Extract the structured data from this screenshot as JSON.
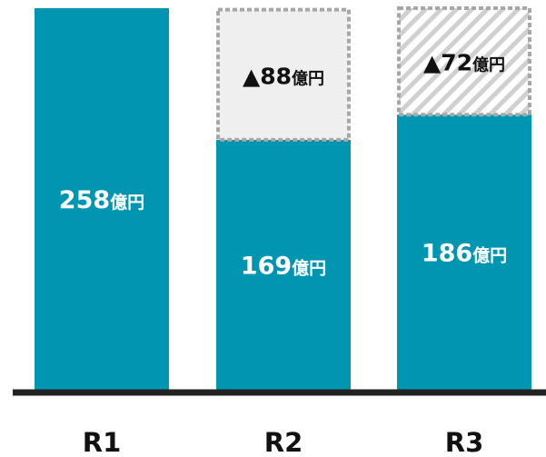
{
  "chart_data": {
    "type": "bar",
    "categories": [
      "R1",
      "R2",
      "R3"
    ],
    "series": [
      {
        "values": [
          258,
          169,
          186
        ]
      },
      {
        "values": [
          0,
          88,
          72
        ]
      }
    ],
    "value_labels": [
      {
        "main_number": "258",
        "main_unit": "億円",
        "delta_text": "",
        "delta_unit": ""
      },
      {
        "main_number": "169",
        "main_unit": "億円",
        "delta_text": "▲88",
        "delta_unit": "億円"
      },
      {
        "main_number": "186",
        "main_unit": "億円",
        "delta_text": "▲72",
        "delta_unit": "億円"
      }
    ],
    "ylim": [
      0,
      258
    ],
    "grid": false,
    "legend": "none"
  },
  "colors": {
    "bar": "#0096b1",
    "reduction_fill_r2": "#efefef",
    "reduction_hatch_r3": "#d0d0d0",
    "dashed_border": "#a7a7a7",
    "baseline": "#222222",
    "text_on_bar": "#ffffff",
    "text_dark": "#111111"
  }
}
